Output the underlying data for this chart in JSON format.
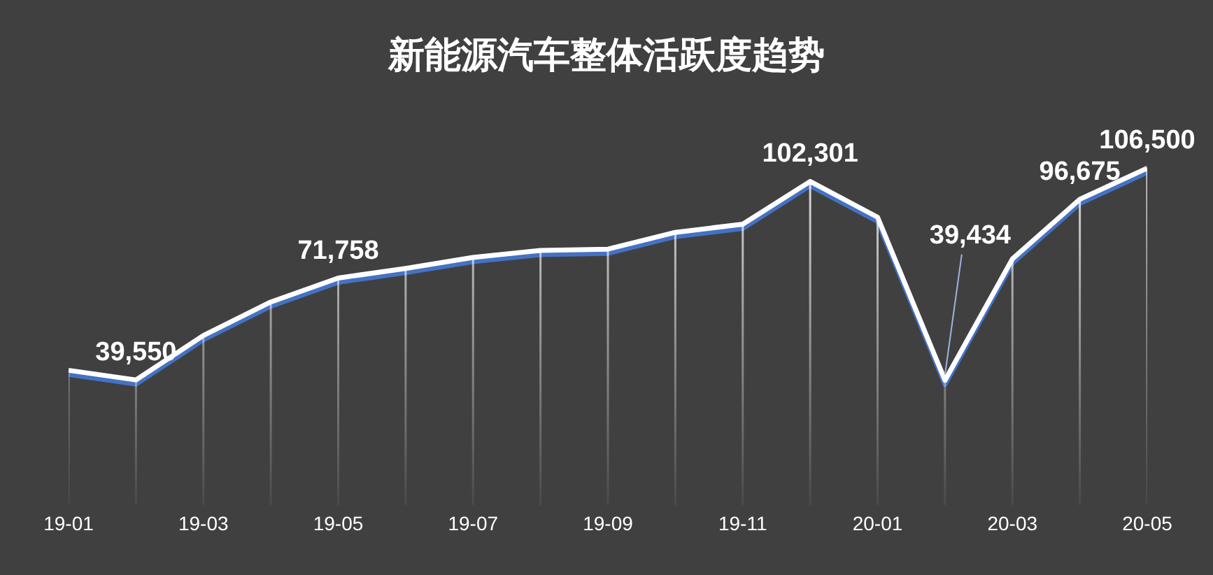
{
  "chart_data": {
    "type": "line",
    "title": "新能源汽车整体活跃度趋势",
    "categories": [
      "19-01",
      null,
      "19-03",
      null,
      "19-05",
      null,
      "19-07",
      null,
      "19-09",
      null,
      "19-11",
      null,
      "20-01",
      null,
      "20-03",
      null,
      "20-05"
    ],
    "series": [
      {
        "color": "#ffffff",
        "values": [
          42600,
          39550,
          53600,
          64200,
          71758,
          74800,
          78300,
          80500,
          80900,
          86200,
          88800,
          102301,
          91000,
          39434,
          77800,
          96675,
          106500
        ],
        "value_labels": [
          null,
          "39,550",
          null,
          null,
          "71,758",
          null,
          null,
          null,
          null,
          null,
          null,
          "102,301",
          null,
          "39,434",
          null,
          "96,675",
          "106,500"
        ]
      }
    ],
    "marker": "none",
    "grid": "x",
    "tick_labels": "x"
  }
}
